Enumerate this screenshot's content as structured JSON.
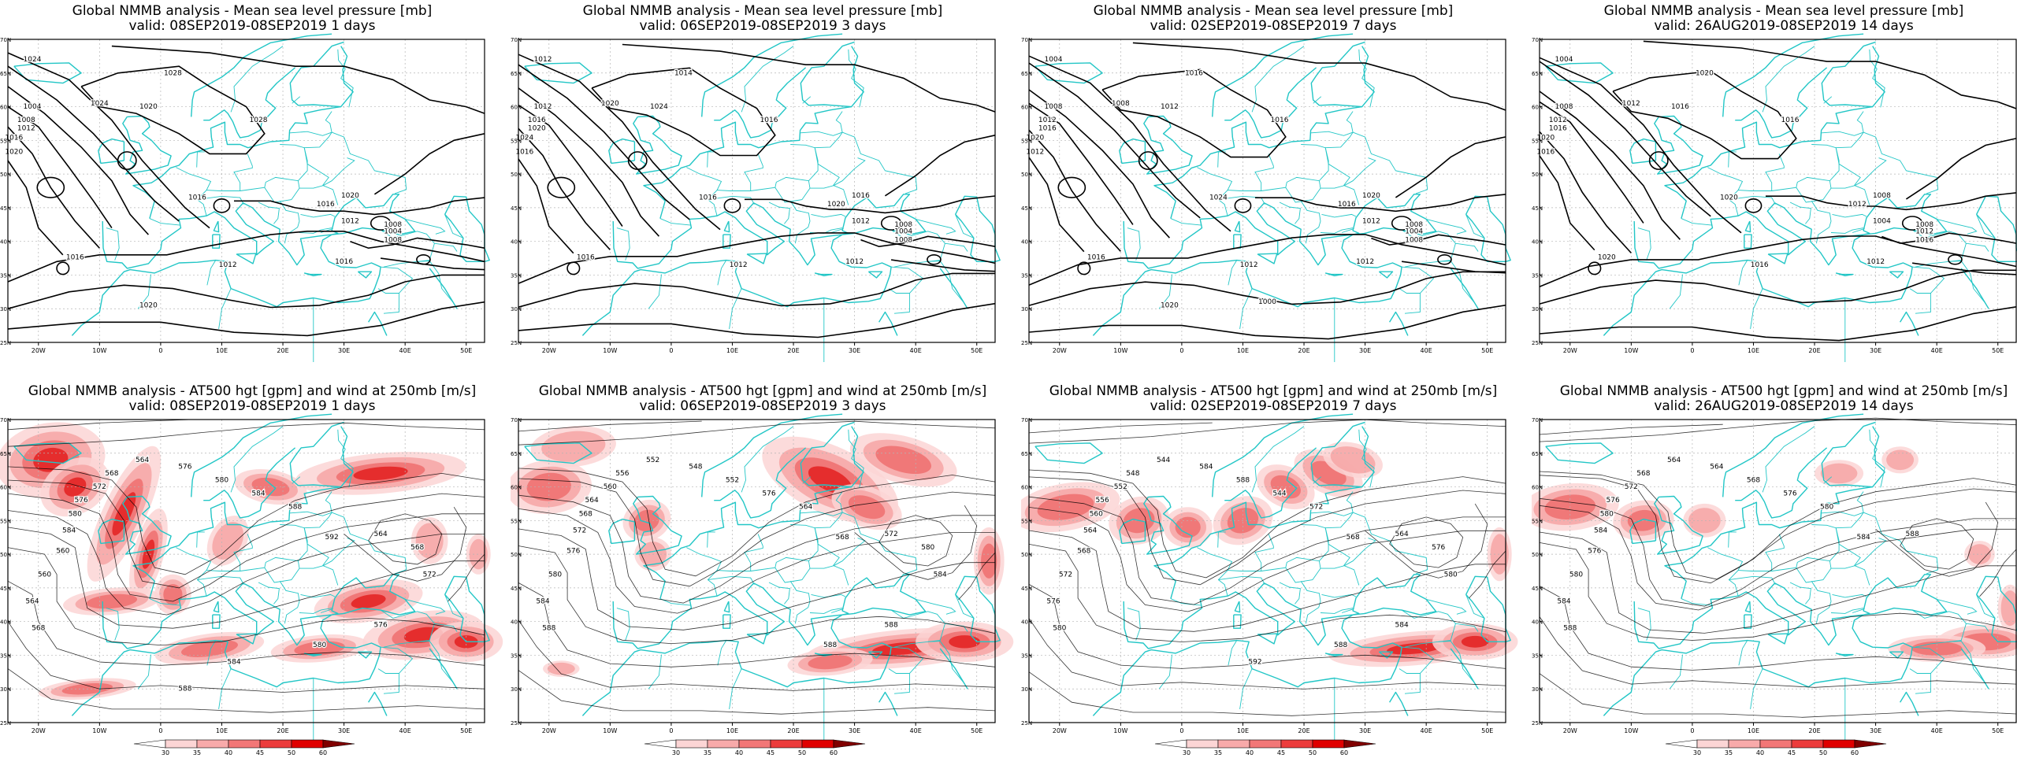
{
  "pressure_title": "Global NMMB analysis - Mean sea level pressure [mb]",
  "height_title": "Global NMMB analysis - AT500 hgt [gpm] and wind at 250mb [m/s]",
  "periods": [
    {
      "valid": "valid: 08SEP2019-08SEP2019   1 days"
    },
    {
      "valid": "valid: 06SEP2019-08SEP2019   3 days"
    },
    {
      "valid": "valid: 02SEP2019-08SEP2019   7 days"
    },
    {
      "valid": "valid: 26AUG2019-08SEP2019   14 days"
    }
  ],
  "lon_ticks": [
    "20W",
    "10W",
    "0",
    "10E",
    "20E",
    "30E",
    "40E",
    "50E"
  ],
  "lat_ticks": [
    "70N",
    "65N",
    "60N",
    "55N",
    "50N",
    "45N",
    "40N",
    "35N",
    "30N",
    "25N"
  ],
  "colorbar_ticks": [
    "30",
    "35",
    "40",
    "45",
    "50",
    "60"
  ],
  "colorbar_colors": [
    "#ffffff",
    "#fcd5d5",
    "#f8aaaa",
    "#f27777",
    "#ec3c3c",
    "#e00000",
    "#800000"
  ],
  "colors": {
    "coast": "#22c6c6",
    "isobar": "#000000",
    "grid": "#b4b4b4",
    "jet": "#e00000"
  },
  "pressure_panels": [
    {
      "labels": [
        "1024",
        "1004",
        "1008",
        "1012",
        "1016",
        "1020",
        "1024",
        "1020",
        "1028",
        "1028",
        "1016",
        "1016",
        "1020",
        "1012",
        "1008",
        "1004",
        "1008",
        "1016",
        "1016",
        "1012",
        "1020"
      ]
    },
    {
      "labels": [
        "1012",
        "1012",
        "1016",
        "1020",
        "1024",
        "1016",
        "1020",
        "1024",
        "1014",
        "1016",
        "1016",
        "1020",
        "1016",
        "1012",
        "1008",
        "1004",
        "1008",
        "1012",
        "1016",
        "1012"
      ]
    },
    {
      "labels": [
        "1004",
        "1008",
        "1012",
        "1016",
        "1020",
        "1012",
        "1008",
        "1012",
        "1016",
        "1016",
        "1024",
        "1016",
        "1020",
        "1012",
        "1008",
        "1004",
        "1008",
        "1012",
        "1016",
        "1012",
        "1020",
        "1000"
      ]
    },
    {
      "labels": [
        "1004",
        "1008",
        "1012",
        "1016",
        "1020",
        "1016",
        "1012",
        "1016",
        "1020",
        "1016",
        "1020",
        "1012",
        "1008",
        "1004",
        "1008",
        "1012",
        "1016",
        "1012",
        "1020",
        "1016"
      ]
    }
  ],
  "height_panels": [
    {
      "labels": [
        "564",
        "568",
        "572",
        "576",
        "580",
        "584",
        "560",
        "560",
        "564",
        "568",
        "576",
        "580",
        "584",
        "588",
        "592",
        "564",
        "568",
        "572",
        "576",
        "580",
        "584",
        "588"
      ]
    },
    {
      "labels": [
        "552",
        "556",
        "560",
        "564",
        "568",
        "572",
        "576",
        "580",
        "584",
        "588",
        "548",
        "552",
        "576",
        "564",
        "568",
        "572",
        "580",
        "584",
        "588",
        "588"
      ]
    },
    {
      "labels": [
        "544",
        "548",
        "552",
        "556",
        "560",
        "564",
        "568",
        "572",
        "576",
        "580",
        "584",
        "588",
        "544",
        "572",
        "568",
        "564",
        "576",
        "580",
        "584",
        "588",
        "592"
      ]
    },
    {
      "labels": [
        "564",
        "568",
        "572",
        "576",
        "580",
        "584",
        "576",
        "580",
        "584",
        "588",
        "564",
        "568",
        "576",
        "580",
        "584",
        "588"
      ]
    }
  ]
}
